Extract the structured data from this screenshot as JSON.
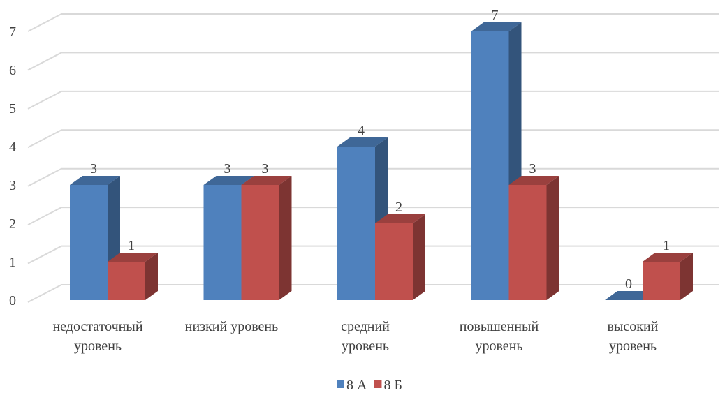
{
  "chart_data": {
    "type": "bar3d",
    "categories": [
      "недостаточный\nуровень",
      "низкий уровень",
      "средний\nуровень",
      "повышенный\nуровень",
      "высокий\nуровень"
    ],
    "series": [
      {
        "name": "8 А",
        "color": "#4f81bd",
        "values": [
          3,
          3,
          4,
          7,
          0
        ]
      },
      {
        "name": "8 Б",
        "color": "#c0504d",
        "values": [
          1,
          3,
          2,
          3,
          1
        ]
      }
    ],
    "ylim": [
      0,
      7
    ],
    "yticks": [
      0,
      1,
      2,
      3,
      4,
      5,
      6,
      7
    ],
    "grid": true,
    "legend": "bottom"
  }
}
